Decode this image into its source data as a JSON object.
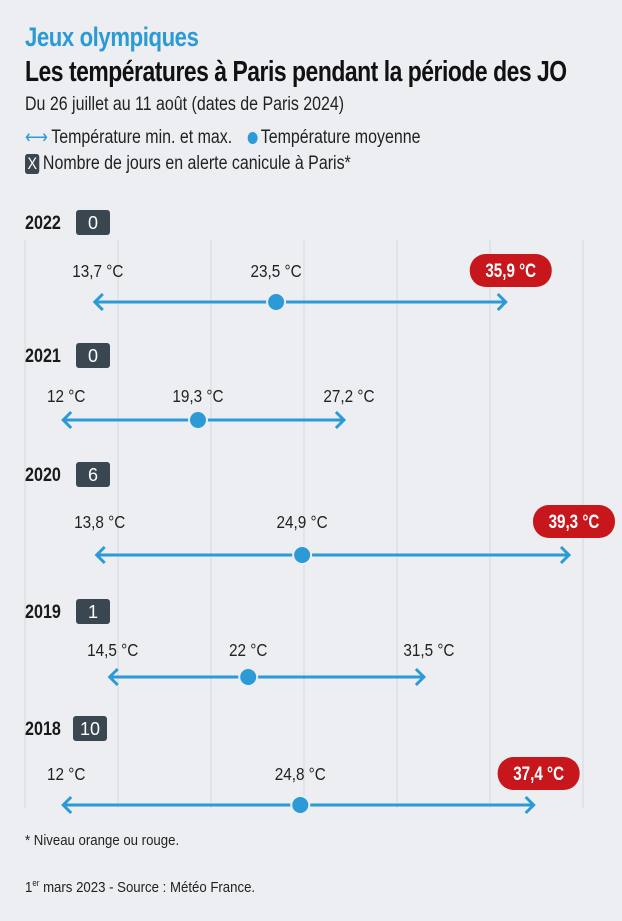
{
  "header": {
    "kicker": "Jeux olympiques",
    "title": "Les températures à Paris pendant la période des JO",
    "subtitle": "Du 26 juillet au 11 août (dates de Paris 2024)"
  },
  "legend": {
    "range_label": "Température min. et max.",
    "mean_label": "Température moyenne",
    "alert_box": "X",
    "alert_label": "Nombre de jours en alerte canicule à Paris*"
  },
  "colors": {
    "accent": "#2b9ad6",
    "alert_badge": "#c8161d",
    "count_badge": "#3a4650",
    "background": "#eceef1"
  },
  "chart_data": {
    "type": "range-dot",
    "x_unit": "°C",
    "xlim": [
      10,
      40
    ],
    "grid": true,
    "gridlines": [
      10,
      15,
      20,
      25,
      30,
      35,
      40
    ],
    "rows": [
      {
        "year": "2022",
        "alert_days": "0",
        "min": 13.7,
        "mean": 23.5,
        "max": 35.9,
        "min_label": "13,7 °C",
        "mean_label": "23,5 °C",
        "max_label": "35,9 °C",
        "max_highlight": true
      },
      {
        "year": "2021",
        "alert_days": "0",
        "min": 12,
        "mean": 19.3,
        "max": 27.2,
        "min_label": "12 °C",
        "mean_label": "19,3 °C",
        "max_label": "27,2 °C",
        "max_highlight": false
      },
      {
        "year": "2020",
        "alert_days": "6",
        "min": 13.8,
        "mean": 24.9,
        "max": 39.3,
        "min_label": "13,8 °C",
        "mean_label": "24,9 °C",
        "max_label": "39,3 °C",
        "max_highlight": true
      },
      {
        "year": "2019",
        "alert_days": "1",
        "min": 14.5,
        "mean": 22,
        "max": 31.5,
        "min_label": "14,5 °C",
        "mean_label": "22 °C",
        "max_label": "31,5 °C",
        "max_highlight": false
      },
      {
        "year": "2018",
        "alert_days": "10",
        "min": 12,
        "mean": 24.8,
        "max": 37.4,
        "min_label": "12 °C",
        "mean_label": "24,8 °C",
        "max_label": "37,4 °C",
        "max_highlight": true
      }
    ]
  },
  "footer": {
    "note": "* Niveau orange ou rouge.",
    "date_day": "1",
    "date_sup": "er",
    "source": " mars 2023 - Source : Météo France."
  }
}
